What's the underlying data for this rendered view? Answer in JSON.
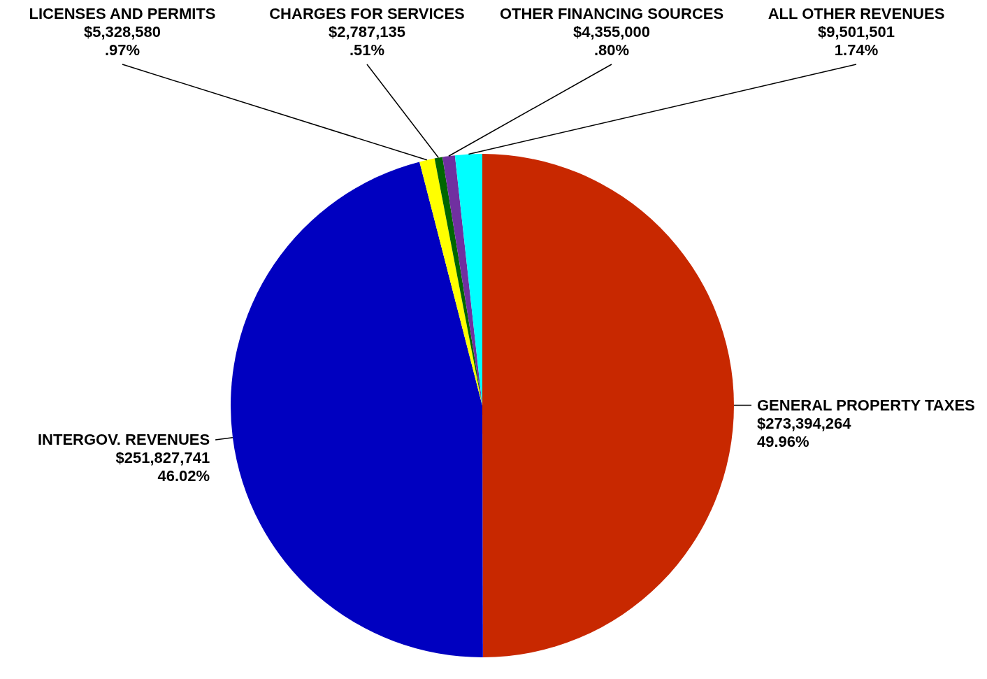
{
  "chart_data": {
    "type": "pie",
    "categories": [
      "GENERAL PROPERTY TAXES",
      "INTERGOV. REVENUES",
      "LICENSES AND PERMITS",
      "CHARGES FOR SERVICES",
      "OTHER FINANCING SOURCES",
      "ALL OTHER REVENUES"
    ],
    "values": [
      273394264,
      251827741,
      5328580,
      2787135,
      4355000,
      9501501
    ],
    "value_labels": [
      "$273,394,264\n49.96%",
      "$251,827,741\n46.02%",
      "$5,328,580\n.97%",
      "$2,787,135\n.51%",
      "$4,355,000\n.80%",
      "$9,501,501\n1.74%"
    ],
    "colors": [
      "#c82800",
      "#0000c0",
      "#ffff00",
      "#006600",
      "#7030a0",
      "#00ffff"
    ]
  }
}
